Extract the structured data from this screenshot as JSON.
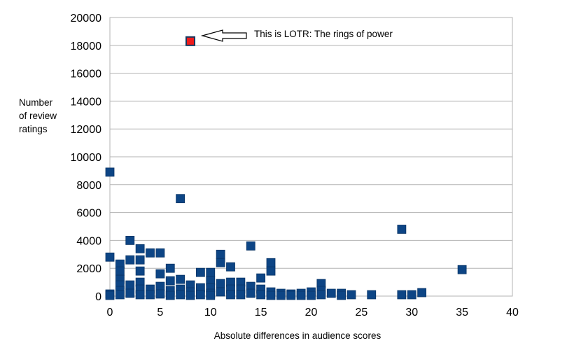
{
  "chart_data": {
    "type": "scatter",
    "title": "",
    "xlabel": "Absolute differences in audience scores",
    "ylabel_lines": [
      "Number",
      "of review",
      "ratings"
    ],
    "xlim": [
      0,
      40
    ],
    "ylim": [
      0,
      20000
    ],
    "x_ticks": [
      "0",
      "5",
      "10",
      "15",
      "20",
      "25",
      "30",
      "35",
      "40"
    ],
    "y_ticks": [
      "0",
      "2000",
      "4000",
      "6000",
      "8000",
      "10000",
      "12000",
      "14000",
      "16000",
      "18000",
      "20000"
    ],
    "grid": "horizontal",
    "legend": "none",
    "colors": {
      "points": "#0d4585",
      "highlight_fill": "#ee1c1c",
      "highlight_edge": "#17365d",
      "grid": "#b3b3b3"
    },
    "series": [
      {
        "points": [
          [
            0,
            8900
          ],
          [
            0,
            2800
          ],
          [
            0,
            150
          ],
          [
            0,
            50
          ],
          [
            1,
            2300
          ],
          [
            1,
            1800
          ],
          [
            1,
            1200
          ],
          [
            1,
            800
          ],
          [
            1,
            400
          ],
          [
            1,
            100
          ],
          [
            2,
            4000
          ],
          [
            2,
            2600
          ],
          [
            2,
            800
          ],
          [
            2,
            200
          ],
          [
            3,
            3400
          ],
          [
            3,
            2600
          ],
          [
            3,
            1800
          ],
          [
            3,
            1000
          ],
          [
            3,
            500
          ],
          [
            3,
            100
          ],
          [
            4,
            3100
          ],
          [
            4,
            500
          ],
          [
            4,
            100
          ],
          [
            5,
            3100
          ],
          [
            5,
            1600
          ],
          [
            5,
            700
          ],
          [
            5,
            150
          ],
          [
            6,
            2000
          ],
          [
            6,
            1100
          ],
          [
            6,
            400
          ],
          [
            6,
            50
          ],
          [
            7,
            7000
          ],
          [
            7,
            1200
          ],
          [
            7,
            500
          ],
          [
            7,
            100
          ],
          [
            8,
            800
          ],
          [
            8,
            300
          ],
          [
            8,
            50
          ],
          [
            9,
            1700
          ],
          [
            9,
            600
          ],
          [
            9,
            100
          ],
          [
            10,
            1700
          ],
          [
            10,
            1100
          ],
          [
            10,
            600
          ],
          [
            10,
            200
          ],
          [
            10,
            50
          ],
          [
            11,
            3000
          ],
          [
            11,
            2400
          ],
          [
            11,
            900
          ],
          [
            11,
            300
          ],
          [
            12,
            2100
          ],
          [
            12,
            1000
          ],
          [
            12,
            500
          ],
          [
            12,
            100
          ],
          [
            13,
            1000
          ],
          [
            13,
            500
          ],
          [
            13,
            100
          ],
          [
            14,
            3600
          ],
          [
            14,
            700
          ],
          [
            14,
            200
          ],
          [
            15,
            1300
          ],
          [
            15,
            500
          ],
          [
            15,
            100
          ],
          [
            16,
            2400
          ],
          [
            16,
            1800
          ],
          [
            16,
            300
          ],
          [
            16,
            50
          ],
          [
            17,
            200
          ],
          [
            17,
            50
          ],
          [
            18,
            150
          ],
          [
            18,
            50
          ],
          [
            19,
            200
          ],
          [
            19,
            50
          ],
          [
            20,
            300
          ],
          [
            20,
            50
          ],
          [
            21,
            900
          ],
          [
            21,
            400
          ],
          [
            21,
            100
          ],
          [
            22,
            200
          ],
          [
            23,
            200
          ],
          [
            23,
            50
          ],
          [
            24,
            100
          ],
          [
            26,
            100
          ],
          [
            29,
            4800
          ],
          [
            29,
            100
          ],
          [
            30,
            100
          ],
          [
            31,
            250
          ],
          [
            35,
            1900
          ]
        ]
      }
    ],
    "highlight": {
      "x": 8,
      "y": 18300
    },
    "annotations": [
      {
        "text": "This is LOTR: The rings of power",
        "x": 8,
        "y": 18300
      }
    ]
  }
}
